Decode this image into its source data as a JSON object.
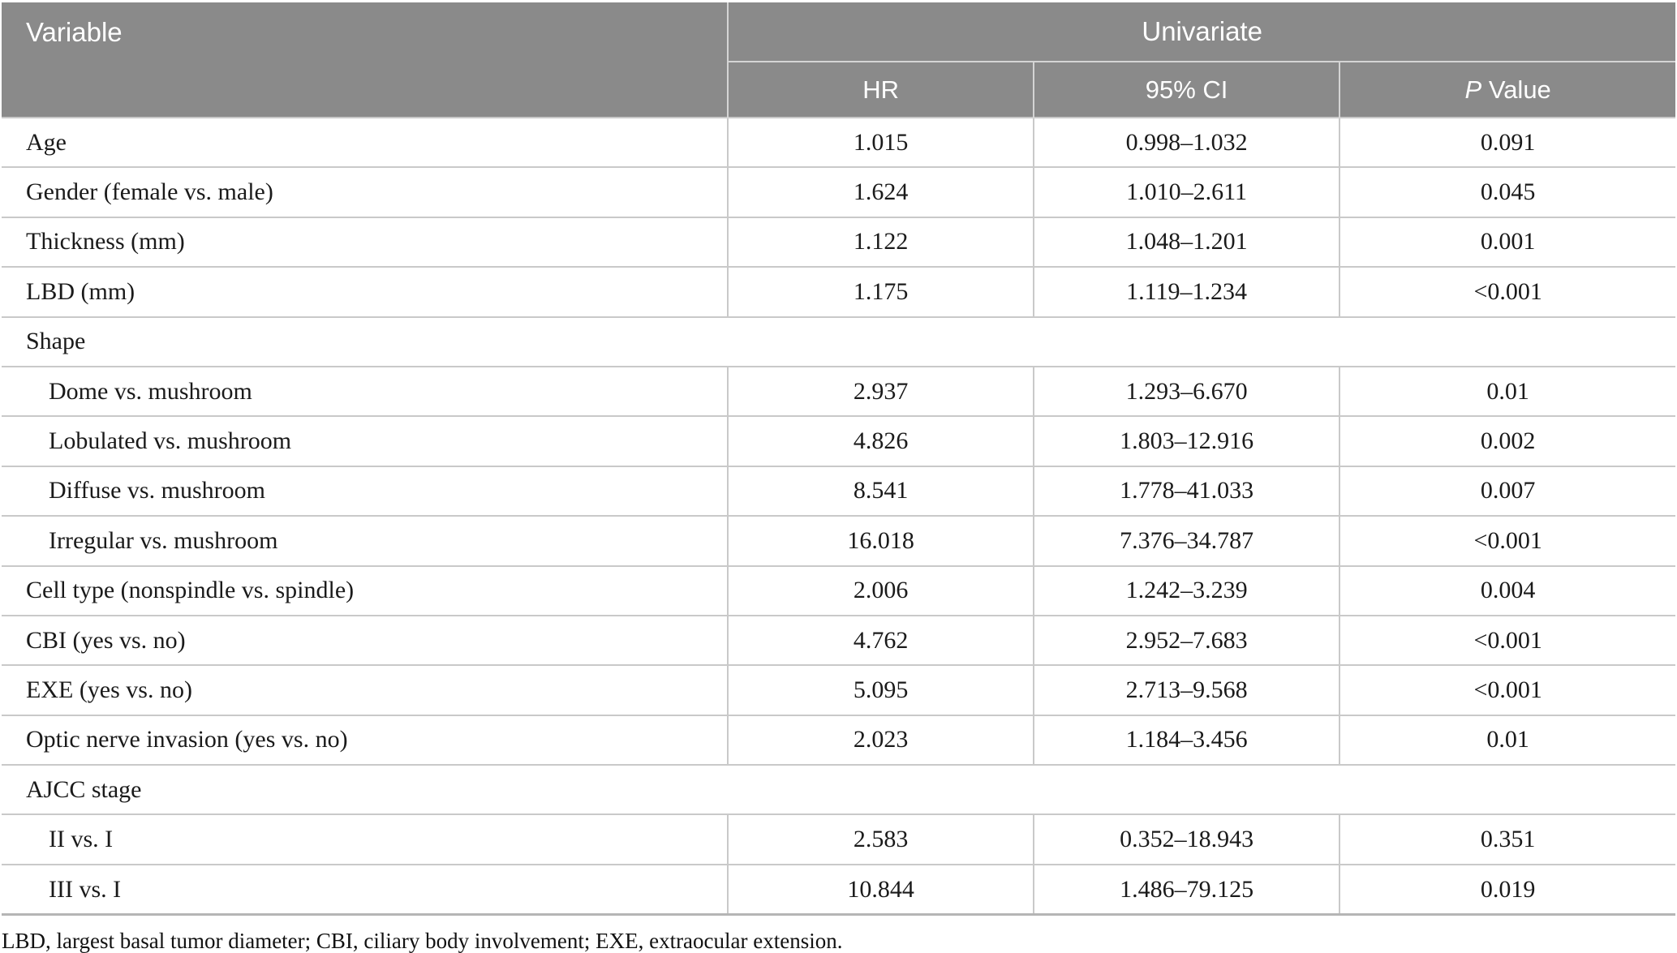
{
  "header": {
    "variable_label": "Variable",
    "group_label": "Univariate",
    "hr_label": "HR",
    "ci_label": "95% CI",
    "p_label_italic": "P",
    "p_label_rest": " Value"
  },
  "table": {
    "rows": [
      {
        "type": "data",
        "indent": false,
        "variable": "Age",
        "hr": "1.015",
        "ci": "0.998–1.032",
        "p": "0.091"
      },
      {
        "type": "data",
        "indent": false,
        "variable": "Gender (female vs. male)",
        "hr": "1.624",
        "ci": "1.010–2.611",
        "p": "0.045"
      },
      {
        "type": "data",
        "indent": false,
        "variable": "Thickness (mm)",
        "hr": "1.122",
        "ci": "1.048–1.201",
        "p": "0.001"
      },
      {
        "type": "data",
        "indent": false,
        "variable": "LBD (mm)",
        "hr": "1.175",
        "ci": "1.119–1.234",
        "p": "<0.001"
      },
      {
        "type": "group",
        "indent": false,
        "variable": "Shape",
        "hr": "",
        "ci": "",
        "p": ""
      },
      {
        "type": "data",
        "indent": true,
        "variable": "Dome vs. mushroom",
        "hr": "2.937",
        "ci": "1.293–6.670",
        "p": "0.01"
      },
      {
        "type": "data",
        "indent": true,
        "variable": "Lobulated vs. mushroom",
        "hr": "4.826",
        "ci": "1.803–12.916",
        "p": "0.002"
      },
      {
        "type": "data",
        "indent": true,
        "variable": "Diffuse vs. mushroom",
        "hr": "8.541",
        "ci": "1.778–41.033",
        "p": "0.007"
      },
      {
        "type": "data",
        "indent": true,
        "variable": "Irregular vs. mushroom",
        "hr": "16.018",
        "ci": "7.376–34.787",
        "p": "<0.001"
      },
      {
        "type": "data",
        "indent": false,
        "variable": "Cell type (nonspindle vs. spindle)",
        "hr": "2.006",
        "ci": "1.242–3.239",
        "p": "0.004"
      },
      {
        "type": "data",
        "indent": false,
        "variable": "CBI (yes vs. no)",
        "hr": "4.762",
        "ci": "2.952–7.683",
        "p": "<0.001"
      },
      {
        "type": "data",
        "indent": false,
        "variable": "EXE (yes vs. no)",
        "hr": "5.095",
        "ci": "2.713–9.568",
        "p": "<0.001"
      },
      {
        "type": "data",
        "indent": false,
        "variable": "Optic nerve invasion (yes vs. no)",
        "hr": "2.023",
        "ci": "1.184–3.456",
        "p": "0.01"
      },
      {
        "type": "group",
        "indent": false,
        "variable": "AJCC stage",
        "hr": "",
        "ci": "",
        "p": ""
      },
      {
        "type": "data",
        "indent": true,
        "variable": "II vs. I",
        "hr": "2.583",
        "ci": "0.352–18.943",
        "p": "0.351"
      },
      {
        "type": "data",
        "indent": true,
        "variable": "III vs. I",
        "hr": "10.844",
        "ci": "1.486–79.125",
        "p": "0.019"
      }
    ]
  },
  "footnote": "LBD, largest basal tumor diameter; CBI, ciliary body involvement; EXE, extraocular extension.",
  "colors": {
    "header_bg": "#8a8a8a",
    "header_text": "#ffffff",
    "header_divider": "#d4d4d4",
    "row_border": "#c9c9c9",
    "table_bottom_border": "#b5b5b5",
    "body_text": "#1a1a1a"
  }
}
